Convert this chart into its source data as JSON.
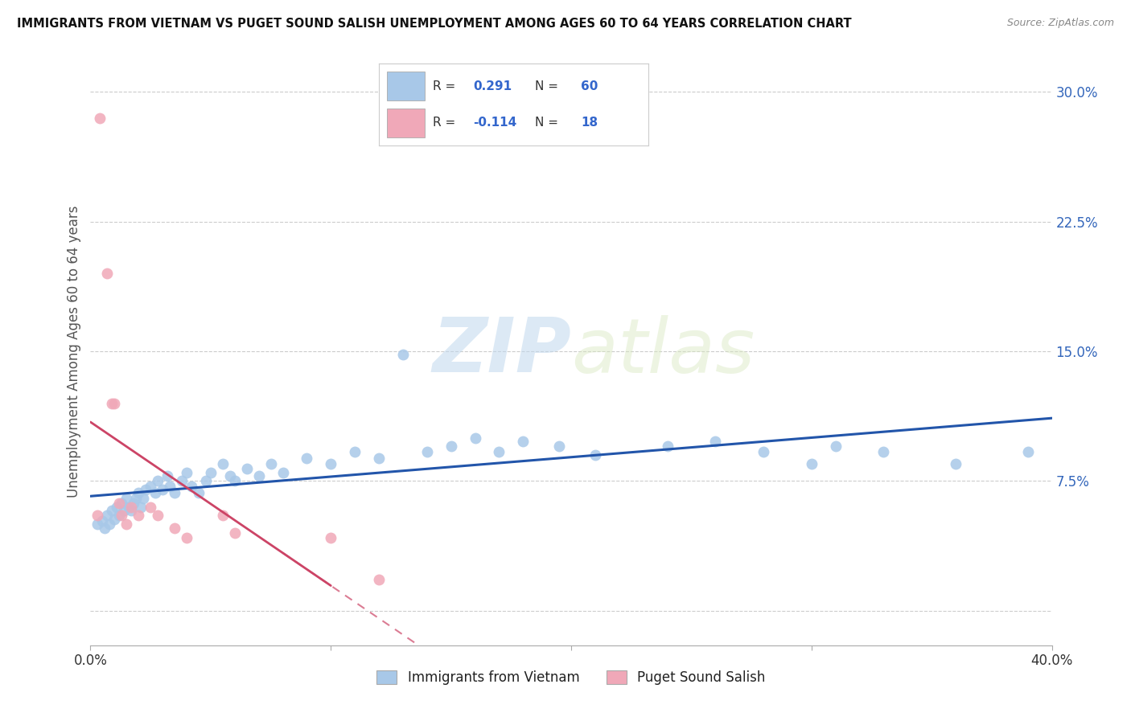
{
  "title": "IMMIGRANTS FROM VIETNAM VS PUGET SOUND SALISH UNEMPLOYMENT AMONG AGES 60 TO 64 YEARS CORRELATION CHART",
  "source": "Source: ZipAtlas.com",
  "ylabel": "Unemployment Among Ages 60 to 64 years",
  "xlim": [
    0.0,
    0.4
  ],
  "ylim": [
    -0.02,
    0.32
  ],
  "yticks": [
    0.0,
    0.075,
    0.15,
    0.225,
    0.3
  ],
  "yticklabels": [
    "",
    "7.5%",
    "15.0%",
    "22.5%",
    "30.0%"
  ],
  "xticks": [
    0.0,
    0.1,
    0.2,
    0.3,
    0.4
  ],
  "xticklabels": [
    "0.0%",
    "",
    "",
    "",
    "40.0%"
  ],
  "watermark_zip": "ZIP",
  "watermark_atlas": "atlas",
  "blue_R": "0.291",
  "blue_N": "60",
  "pink_R": "-0.114",
  "pink_N": "18",
  "blue_color": "#a8c8e8",
  "pink_color": "#f0a8b8",
  "blue_line_color": "#2255aa",
  "pink_line_color": "#cc4466",
  "background_color": "#FFFFFF",
  "blue_scatter": [
    [
      0.003,
      0.05
    ],
    [
      0.005,
      0.052
    ],
    [
      0.006,
      0.048
    ],
    [
      0.007,
      0.055
    ],
    [
      0.008,
      0.05
    ],
    [
      0.009,
      0.058
    ],
    [
      0.01,
      0.053
    ],
    [
      0.011,
      0.06
    ],
    [
      0.012,
      0.055
    ],
    [
      0.013,
      0.062
    ],
    [
      0.014,
      0.058
    ],
    [
      0.015,
      0.065
    ],
    [
      0.016,
      0.06
    ],
    [
      0.017,
      0.058
    ],
    [
      0.018,
      0.062
    ],
    [
      0.019,
      0.065
    ],
    [
      0.02,
      0.068
    ],
    [
      0.021,
      0.06
    ],
    [
      0.022,
      0.065
    ],
    [
      0.023,
      0.07
    ],
    [
      0.025,
      0.072
    ],
    [
      0.027,
      0.068
    ],
    [
      0.028,
      0.075
    ],
    [
      0.03,
      0.07
    ],
    [
      0.032,
      0.078
    ],
    [
      0.033,
      0.072
    ],
    [
      0.035,
      0.068
    ],
    [
      0.038,
      0.075
    ],
    [
      0.04,
      0.08
    ],
    [
      0.042,
      0.072
    ],
    [
      0.045,
      0.068
    ],
    [
      0.048,
      0.075
    ],
    [
      0.05,
      0.08
    ],
    [
      0.055,
      0.085
    ],
    [
      0.058,
      0.078
    ],
    [
      0.06,
      0.075
    ],
    [
      0.065,
      0.082
    ],
    [
      0.07,
      0.078
    ],
    [
      0.075,
      0.085
    ],
    [
      0.08,
      0.08
    ],
    [
      0.09,
      0.088
    ],
    [
      0.1,
      0.085
    ],
    [
      0.11,
      0.092
    ],
    [
      0.12,
      0.088
    ],
    [
      0.13,
      0.148
    ],
    [
      0.14,
      0.092
    ],
    [
      0.15,
      0.095
    ],
    [
      0.16,
      0.1
    ],
    [
      0.17,
      0.092
    ],
    [
      0.18,
      0.098
    ],
    [
      0.195,
      0.095
    ],
    [
      0.21,
      0.09
    ],
    [
      0.24,
      0.095
    ],
    [
      0.26,
      0.098
    ],
    [
      0.28,
      0.092
    ],
    [
      0.3,
      0.085
    ],
    [
      0.31,
      0.095
    ],
    [
      0.33,
      0.092
    ],
    [
      0.36,
      0.085
    ],
    [
      0.39,
      0.092
    ]
  ],
  "pink_scatter": [
    [
      0.003,
      0.055
    ],
    [
      0.004,
      0.285
    ],
    [
      0.007,
      0.195
    ],
    [
      0.009,
      0.12
    ],
    [
      0.01,
      0.12
    ],
    [
      0.012,
      0.062
    ],
    [
      0.013,
      0.055
    ],
    [
      0.015,
      0.05
    ],
    [
      0.017,
      0.06
    ],
    [
      0.02,
      0.055
    ],
    [
      0.025,
      0.06
    ],
    [
      0.028,
      0.055
    ],
    [
      0.035,
      0.048
    ],
    [
      0.04,
      0.042
    ],
    [
      0.055,
      0.055
    ],
    [
      0.06,
      0.045
    ],
    [
      0.1,
      0.042
    ],
    [
      0.12,
      0.018
    ]
  ]
}
